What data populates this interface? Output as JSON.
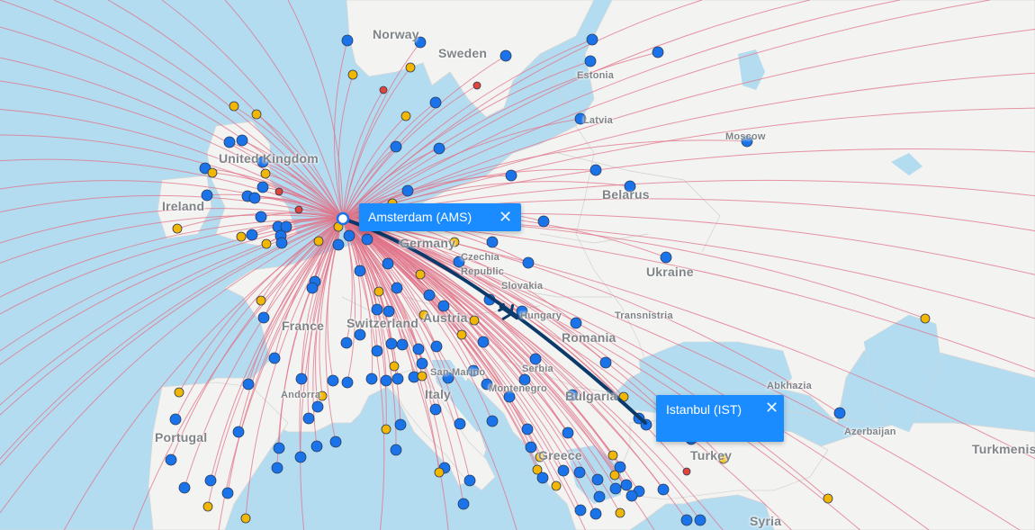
{
  "map": {
    "countries": [
      {
        "name": "Norway",
        "small": false
      },
      {
        "name": "Sweden",
        "small": false
      },
      {
        "name": "Estonia",
        "small": true
      },
      {
        "name": "Latvia",
        "small": true
      },
      {
        "name": "Moscow",
        "small": true
      },
      {
        "name": "United Kingdom",
        "small": false
      },
      {
        "name": "Ireland",
        "small": false
      },
      {
        "name": "Belarus",
        "small": false
      },
      {
        "name": "Germany",
        "small": false
      },
      {
        "name": "Czechia",
        "small": true
      },
      {
        "name": "Republic",
        "small": true
      },
      {
        "name": "Slovakia",
        "small": true
      },
      {
        "name": "Ukraine",
        "small": false
      },
      {
        "name": "Transnistria",
        "small": true
      },
      {
        "name": "Romania",
        "small": false
      },
      {
        "name": "France",
        "small": false
      },
      {
        "name": "Switzerland",
        "small": false
      },
      {
        "name": "Austria",
        "small": false
      },
      {
        "name": "Hungary",
        "small": true
      },
      {
        "name": "Serbia",
        "small": true
      },
      {
        "name": "Montenegro",
        "small": true
      },
      {
        "name": "Bulgaria",
        "small": false
      },
      {
        "name": "San Marino",
        "small": true
      },
      {
        "name": "Andorra",
        "small": true
      },
      {
        "name": "Italy",
        "small": false
      },
      {
        "name": "Portugal",
        "small": false
      },
      {
        "name": "Greece",
        "small": false
      },
      {
        "name": "Turkey",
        "small": false
      },
      {
        "name": "Abkhazia",
        "small": true
      },
      {
        "name": "Azerbaijan",
        "small": true
      },
      {
        "name": "Turkmenistan",
        "small": false
      },
      {
        "name": "Syria",
        "small": false
      }
    ],
    "colors": {
      "water": "#b4dcf0",
      "land": "#f3f3f1",
      "route_line": "#e07388",
      "selected_route": "#0b3a6b",
      "airport_blue": "#1a73e8",
      "airport_yellow": "#f2b705",
      "airport_red": "#e0453a",
      "popup_bg": "#1a8cff"
    }
  },
  "origin": {
    "label": "Amsterdam (AMS)",
    "close_icon": "close-icon"
  },
  "destination": {
    "label": "Istanbul (IST)",
    "close_icon": "close-icon"
  },
  "close_symbol": "✕",
  "plane_icon": "airplane-icon"
}
